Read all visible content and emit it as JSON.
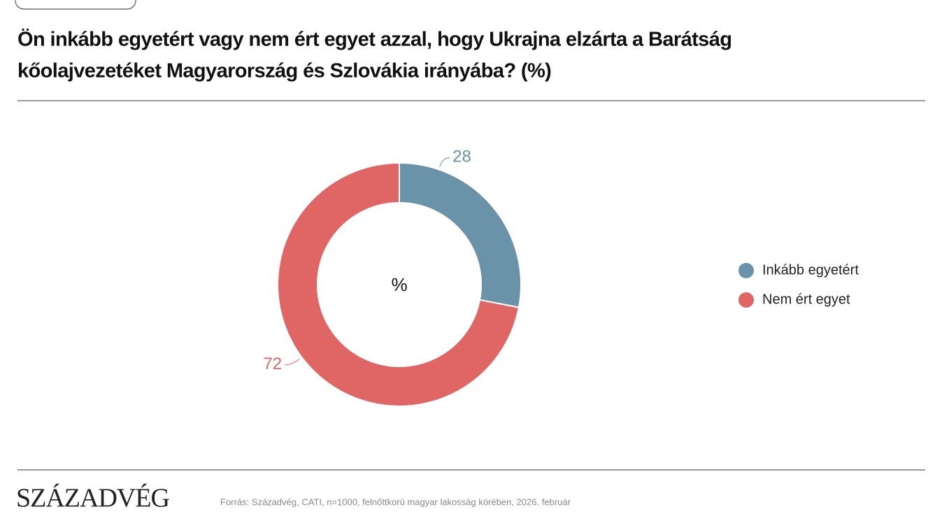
{
  "chart_data": {
    "type": "donut",
    "title": [
      "Ön inkább egyetért vagy nem ért egyet azzal, hogy Ukrajna elzárta a Barátság",
      "kőolajvezetéket Magyarország és Szlovákia irányába? (%)"
    ],
    "center_label": "%",
    "categories": [
      "Inkább egyetért",
      "Nem ért egyet"
    ],
    "values": [
      28,
      72
    ],
    "colors": [
      "#6a92a8",
      "#e06666"
    ],
    "legend": "right"
  },
  "footer": {
    "logo": "SZÁZADVÉG",
    "source": "Forrás: Századvég, CATI, n=1000, felnőttkorú magyar lakosság körében, 2026. február"
  }
}
